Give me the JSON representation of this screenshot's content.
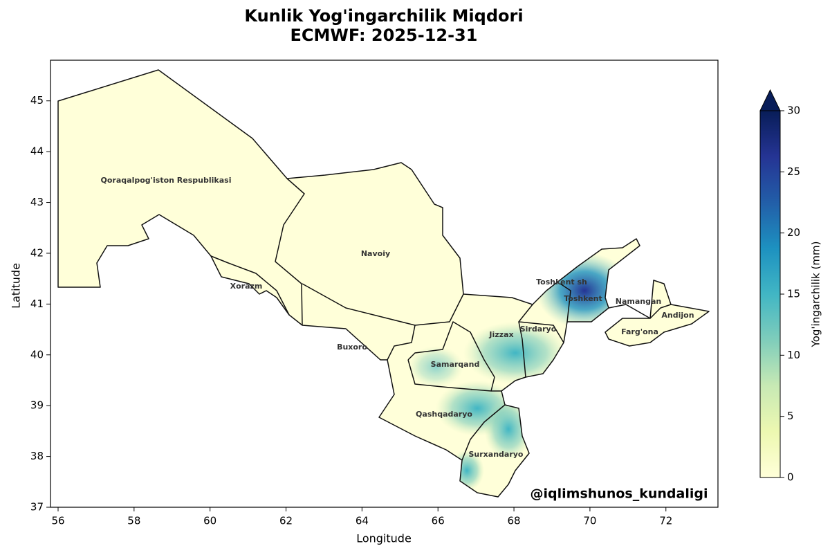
{
  "chart_data": {
    "type": "map",
    "title": "Kunlik Yog'ingarchilik Miqdori",
    "subtitle": "ECMWF: 2025-12-31",
    "xlabel": "Longitude",
    "ylabel": "Latitude",
    "xlim": [
      55.8,
      73.37
    ],
    "ylim": [
      37,
      45.8
    ],
    "xticks": [
      56,
      58,
      60,
      62,
      64,
      66,
      68,
      70,
      72
    ],
    "yticks": [
      37,
      38,
      39,
      40,
      41,
      42,
      43,
      44,
      45
    ],
    "colorbar": {
      "label": "Yog'ingarchilik (mm)",
      "lim": [
        0,
        30
      ],
      "ticks": [
        0,
        5,
        10,
        15,
        20,
        25,
        30
      ],
      "colors": [
        "#ffffd9",
        "#edf8b1",
        "#c7e9b4",
        "#7fcdbb",
        "#41b6c4",
        "#1d91c0",
        "#225ea8",
        "#253494",
        "#081d58"
      ]
    },
    "regions": [
      "Qoraqalpog'iston Respublikasi",
      "Navoiy",
      "Xorazm",
      "Buxoro",
      "Samarqand",
      "Jizzax",
      "Sirdaryo",
      "Toshkent sh",
      "Toshkent",
      "Namangan",
      "Andijon",
      "Farg'ona",
      "Qashqadaryo",
      "Surxandaryo"
    ],
    "watermark": "@iqlimshunos_kundaligi"
  }
}
